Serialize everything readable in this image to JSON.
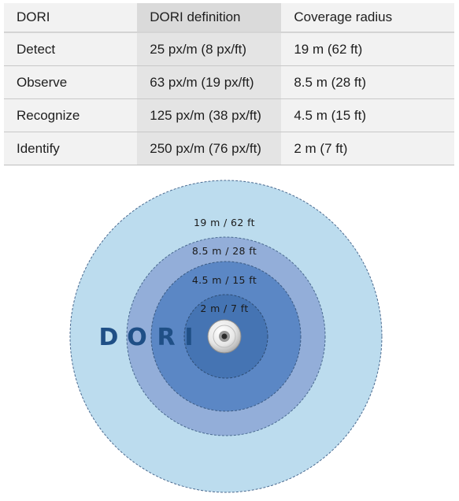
{
  "table": {
    "headers": [
      "DORI",
      "DORI definition",
      "Coverage radius"
    ],
    "rows": [
      [
        "Detect",
        "25 px/m (8 px/ft)",
        "19 m (62 ft)"
      ],
      [
        "Observe",
        "63 px/m (19 px/ft)",
        "8.5 m (28 ft)"
      ],
      [
        "Recognize",
        "125 px/m (38 px/ft)",
        "4.5 m (15 ft)"
      ],
      [
        "Identify",
        "250 px/m (76 px/ft)",
        "2 m (7 ft)"
      ]
    ]
  },
  "diagram": {
    "ring_labels": [
      "19 m / 62 ft",
      "8.5 m / 28 ft",
      "4.5 m / 15 ft",
      "2 m / 7 ft"
    ],
    "letters": [
      "D",
      "O",
      "R",
      "I"
    ],
    "colors": {
      "detect_ring": "#bcdcee",
      "observe_ring": "#93aed9",
      "recognize_ring": "#5b87c5",
      "identify_ring": "#4574b3",
      "ring_stroke": "#4a6a90",
      "dori_text": "#1f4f86"
    }
  }
}
